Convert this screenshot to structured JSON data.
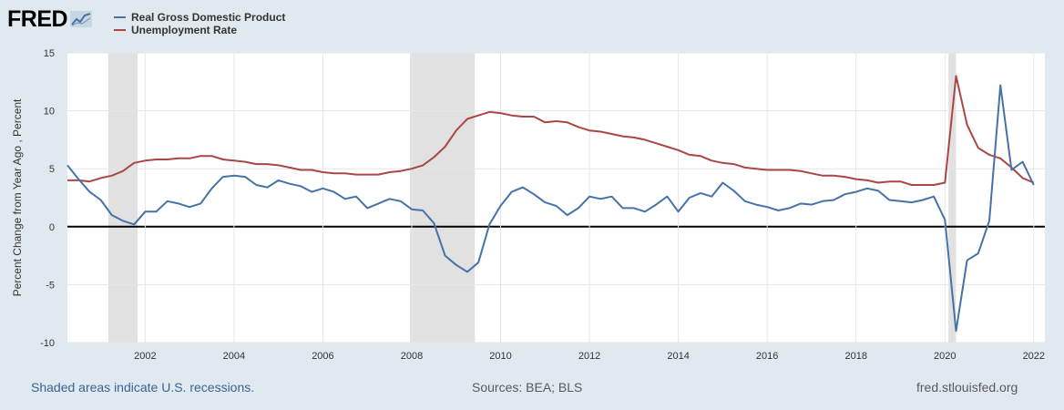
{
  "header": {
    "logo_text": "FRED"
  },
  "footer": {
    "recession_note": "Shaded areas indicate U.S. recessions.",
    "sources": "Sources: BEA; BLS",
    "site": "fred.stlouisfed.org"
  },
  "chart_data": {
    "type": "line",
    "ylabel": "Percent Change from Year Ago , Percent",
    "ylim": [
      -10,
      15
    ],
    "yticks": [
      -10,
      -5,
      0,
      5,
      10,
      15
    ],
    "xlim": [
      2000.25,
      2022.25
    ],
    "xticks": [
      "2002",
      "2004",
      "2006",
      "2008",
      "2010",
      "2012",
      "2014",
      "2016",
      "2018",
      "2020",
      "2022"
    ],
    "grid": true,
    "legend_position": "top-left",
    "recessions": [
      [
        2001.17,
        2001.83
      ],
      [
        2007.96,
        2009.42
      ],
      [
        2020.08,
        2020.25
      ]
    ],
    "colors": {
      "plot_bg": "#ffffff",
      "grid": "#e6e6e6",
      "recession": "#e1e1e1",
      "zero_line": "#000000"
    },
    "series": [
      {
        "name": "Real Gross Domestic Product",
        "color": "#4572a7",
        "start": 2000.25,
        "step": 0.25,
        "values": [
          5.3,
          4.1,
          3.0,
          2.3,
          1.0,
          0.5,
          0.2,
          1.3,
          1.3,
          2.2,
          2.0,
          1.7,
          2.0,
          3.3,
          4.3,
          4.4,
          4.3,
          3.6,
          3.4,
          4.0,
          3.7,
          3.5,
          3.0,
          3.3,
          3.0,
          2.4,
          2.6,
          1.6,
          2.0,
          2.4,
          2.2,
          1.5,
          1.4,
          0.3,
          -2.5,
          -3.3,
          -3.9,
          -3.1,
          0.2,
          1.8,
          3.0,
          3.4,
          2.8,
          2.1,
          1.8,
          1.0,
          1.6,
          2.6,
          2.4,
          2.6,
          1.6,
          1.6,
          1.3,
          1.9,
          2.6,
          1.3,
          2.5,
          2.9,
          2.6,
          3.8,
          3.1,
          2.2,
          1.9,
          1.7,
          1.4,
          1.6,
          2.0,
          1.9,
          2.2,
          2.3,
          2.8,
          3.0,
          3.3,
          3.1,
          2.3,
          2.2,
          2.1,
          2.3,
          2.6,
          0.6,
          -9.0,
          -2.9,
          -2.3,
          0.5,
          12.2,
          4.9,
          5.6,
          3.6
        ]
      },
      {
        "name": "Unemployment Rate",
        "color": "#aa4643",
        "start": 2000.25,
        "step": 0.25,
        "values": [
          4.0,
          4.0,
          3.9,
          4.2,
          4.4,
          4.8,
          5.5,
          5.7,
          5.8,
          5.8,
          5.9,
          5.9,
          6.1,
          6.1,
          5.8,
          5.7,
          5.6,
          5.4,
          5.4,
          5.3,
          5.1,
          4.9,
          4.9,
          4.7,
          4.6,
          4.6,
          4.5,
          4.5,
          4.5,
          4.7,
          4.8,
          5.0,
          5.3,
          6.0,
          6.9,
          8.3,
          9.3,
          9.6,
          9.9,
          9.8,
          9.6,
          9.5,
          9.5,
          9.0,
          9.1,
          9.0,
          8.6,
          8.3,
          8.2,
          8.0,
          7.8,
          7.7,
          7.5,
          7.2,
          6.9,
          6.6,
          6.2,
          6.1,
          5.7,
          5.5,
          5.4,
          5.1,
          5.0,
          4.9,
          4.9,
          4.9,
          4.8,
          4.6,
          4.4,
          4.4,
          4.3,
          4.1,
          4.0,
          3.8,
          3.9,
          3.9,
          3.6,
          3.6,
          3.6,
          3.8,
          13.0,
          8.8,
          6.8,
          6.2,
          5.9,
          5.1,
          4.2,
          3.8
        ]
      }
    ]
  }
}
